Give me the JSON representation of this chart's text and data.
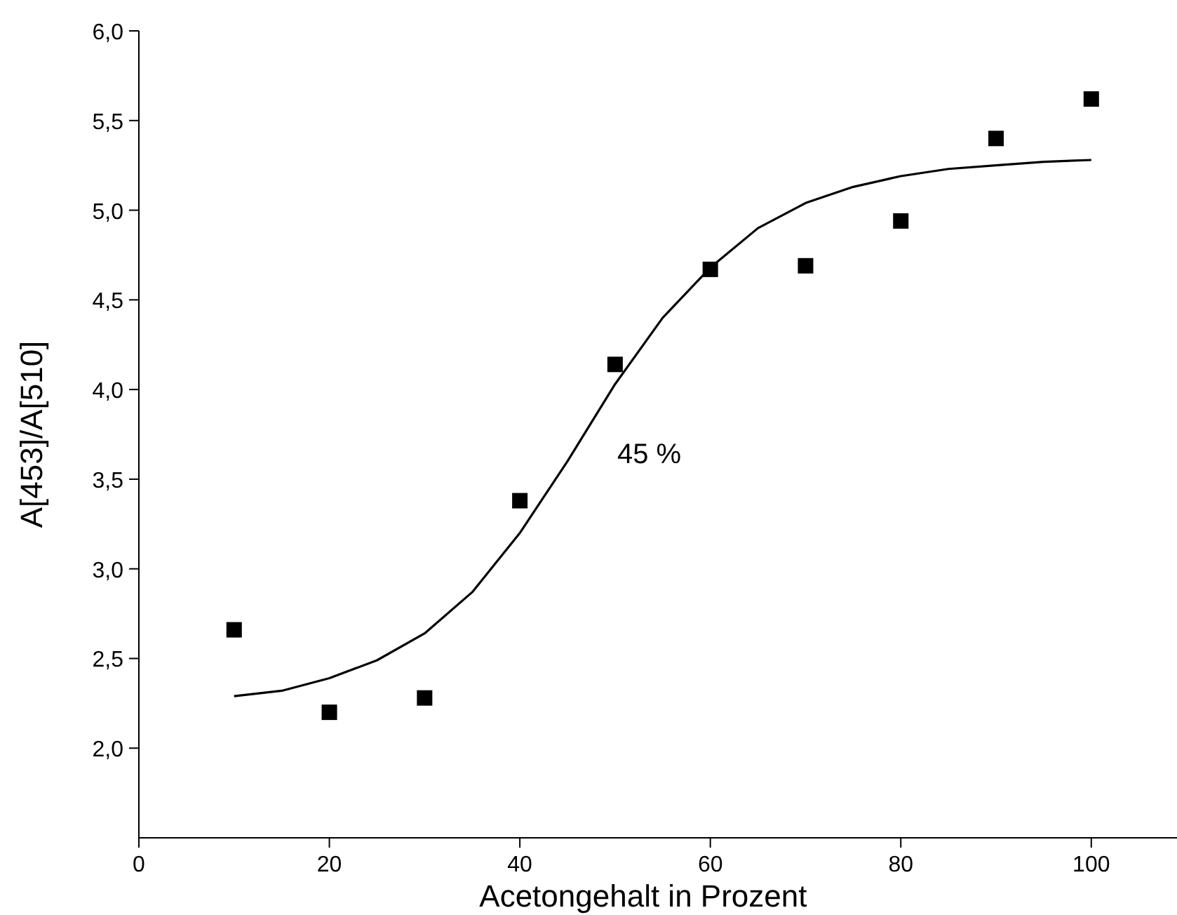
{
  "chart_data": {
    "type": "scatter",
    "xlabel": "Acetongehalt in Prozent",
    "ylabel": "A[453]/A[510]",
    "grid": false,
    "xlim": [
      0,
      109
    ],
    "xticks": [
      0,
      20,
      40,
      60,
      80,
      100
    ],
    "ylim": [
      1.5,
      6.0
    ],
    "yticks": [
      {
        "value": 2,
        "label": "2,0"
      },
      {
        "value": 2.5,
        "label": "2,5"
      },
      {
        "value": 3,
        "label": "3,0"
      },
      {
        "value": 3.5,
        "label": "3,5"
      },
      {
        "value": 4,
        "label": "4,0"
      },
      {
        "value": 4.5,
        "label": "4,5"
      },
      {
        "value": 5,
        "label": "5,0"
      },
      {
        "value": 5.5,
        "label": "5,5"
      },
      {
        "value": 6,
        "label": "6,0"
      }
    ],
    "series": [
      {
        "color": "#000000",
        "marker": "square",
        "x": [
          10,
          20,
          30,
          40,
          50,
          60,
          70,
          80,
          90,
          100
        ],
        "values": [
          2.66,
          2.2,
          2.28,
          3.38,
          4.14,
          4.67,
          4.69,
          4.94,
          5.4,
          5.62
        ]
      },
      {
        "type": "line",
        "color": "#000000",
        "marker": "none",
        "line_style": "solid",
        "x": [
          10,
          15,
          20,
          25,
          30,
          35,
          40,
          45,
          50,
          55,
          60,
          65,
          70,
          75,
          80,
          85,
          90,
          95,
          100
        ],
        "values": [
          2.29,
          2.32,
          2.39,
          2.49,
          2.64,
          2.87,
          3.2,
          3.6,
          4.03,
          4.4,
          4.68,
          4.9,
          5.04,
          5.13,
          5.19,
          5.23,
          5.25,
          5.27,
          5.28
        ]
      }
    ],
    "annotations": [
      "45 %"
    ]
  }
}
